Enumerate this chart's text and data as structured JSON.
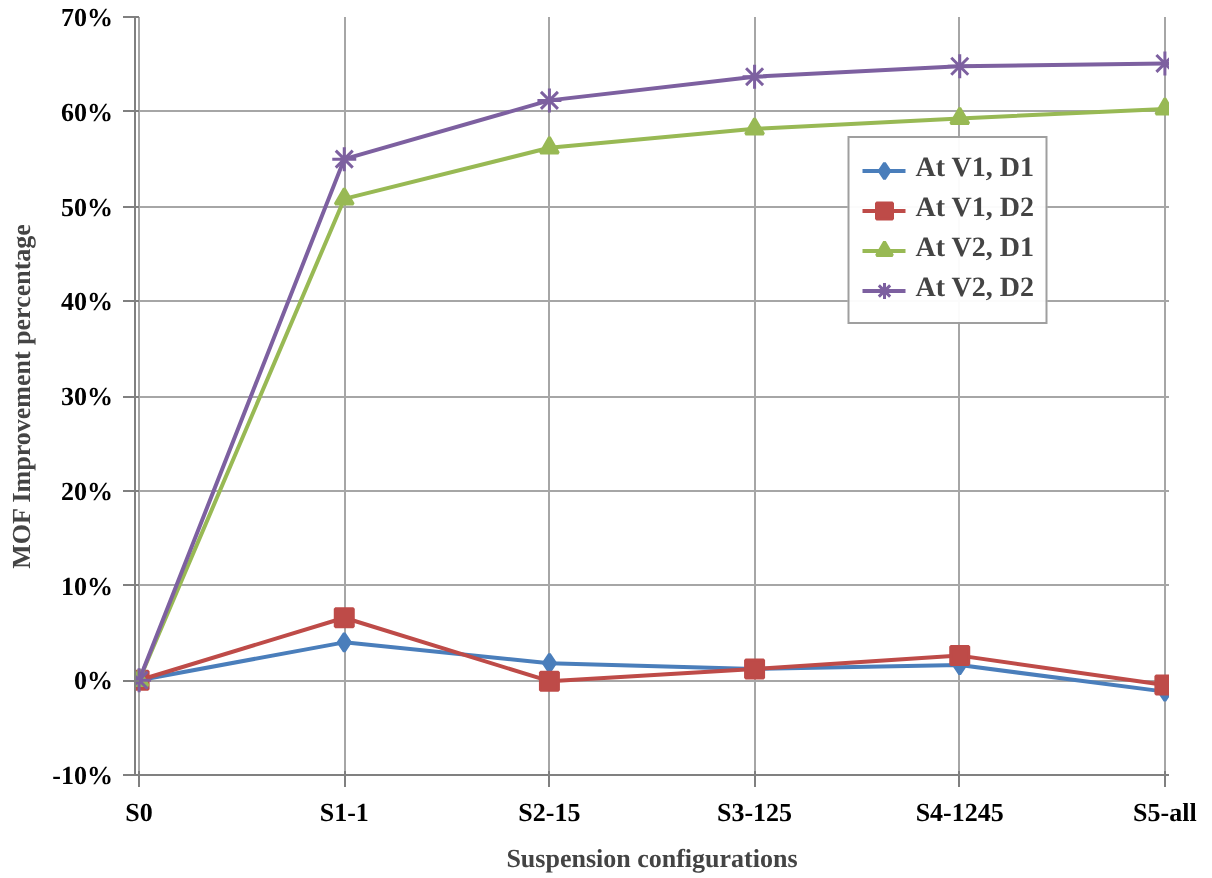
{
  "chart_data": {
    "type": "line",
    "xlabel": "Suspension configurations",
    "ylabel": "MOF Improvement percentage",
    "categories": [
      "S0",
      "S1-1",
      "S2-15",
      "S3-125",
      "S4-1245",
      "S5-all"
    ],
    "series": [
      {
        "name": "At V1, D1",
        "color": "#4a7ebb",
        "marker": "diamond",
        "values": [
          0,
          4.0,
          1.8,
          1.2,
          1.6,
          -1.2
        ]
      },
      {
        "name": "At V1, D2",
        "color": "#be4b48",
        "marker": "square",
        "values": [
          0,
          6.6,
          -0.1,
          1.2,
          2.6,
          -0.5
        ]
      },
      {
        "name": "At V2, D1",
        "color": "#98b954",
        "marker": "triangle",
        "values": [
          0,
          50.8,
          56.2,
          58.2,
          59.3,
          60.3
        ]
      },
      {
        "name": "At V2, D2",
        "color": "#7d60a0",
        "marker": "cross",
        "values": [
          0,
          55.0,
          61.2,
          63.7,
          64.8,
          65.1
        ]
      }
    ],
    "ylim": [
      -10,
      70
    ],
    "yticks": [
      {
        "value": -10,
        "label": "-10%"
      },
      {
        "value": 0,
        "label": "0%"
      },
      {
        "value": 10,
        "label": "10%"
      },
      {
        "value": 20,
        "label": "20%"
      },
      {
        "value": 30,
        "label": "30%"
      },
      {
        "value": 40,
        "label": "40%"
      },
      {
        "value": 50,
        "label": "50%"
      },
      {
        "value": 60,
        "label": "60%"
      },
      {
        "value": 70,
        "label": "70%"
      }
    ],
    "grid": true,
    "legend": "top right",
    "line_style": "solid"
  }
}
